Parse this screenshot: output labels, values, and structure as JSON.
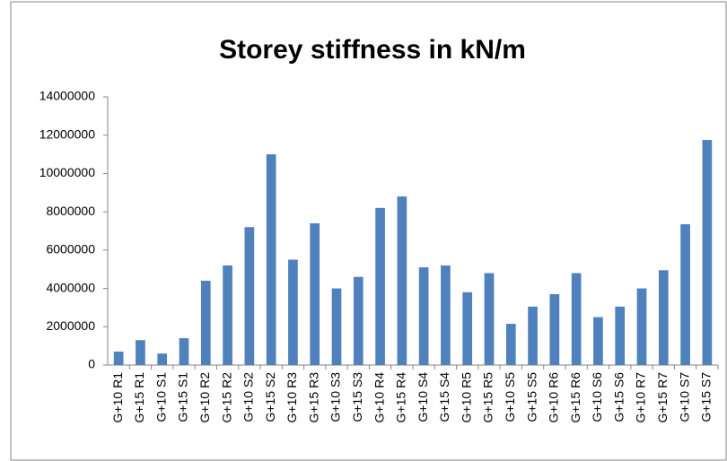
{
  "chart_data": {
    "type": "bar",
    "title": "Storey stiffness in kN/m",
    "categories": [
      "G+10 R1",
      "G+15 R1",
      "G+10 S1",
      "G+15 S1",
      "G+10 R2",
      "G+15 R2",
      "G+10 S2",
      "G+15 S2",
      "G+10 R3",
      "G+15 R3",
      "G+10 S3",
      "G+15 S3",
      "G+10 R4",
      "G+15 R4",
      "G+10 S4",
      "G+15 S4",
      "G+10 R5",
      "G+15 R5",
      "G+10 S5",
      "G+15 S5",
      "G+10 R6",
      "G+15 R6",
      "G+10 S6",
      "G+15 S6",
      "G+10 R7",
      "G+15 R7",
      "G+10 S7",
      "G+15 S7"
    ],
    "values": [
      700000,
      1300000,
      600000,
      1400000,
      4400000,
      5200000,
      7200000,
      11000000,
      5500000,
      7400000,
      4000000,
      4600000,
      8200000,
      8800000,
      5100000,
      5200000,
      3800000,
      4800000,
      2150000,
      3050000,
      3700000,
      4800000,
      2500000,
      3050000,
      4000000,
      4950000,
      7350000,
      11750000
    ],
    "color": "#4f81bd",
    "ylim": [
      0,
      14000000
    ],
    "yticks": [
      0,
      2000000,
      4000000,
      6000000,
      8000000,
      10000000,
      12000000,
      14000000
    ],
    "grid": false
  }
}
